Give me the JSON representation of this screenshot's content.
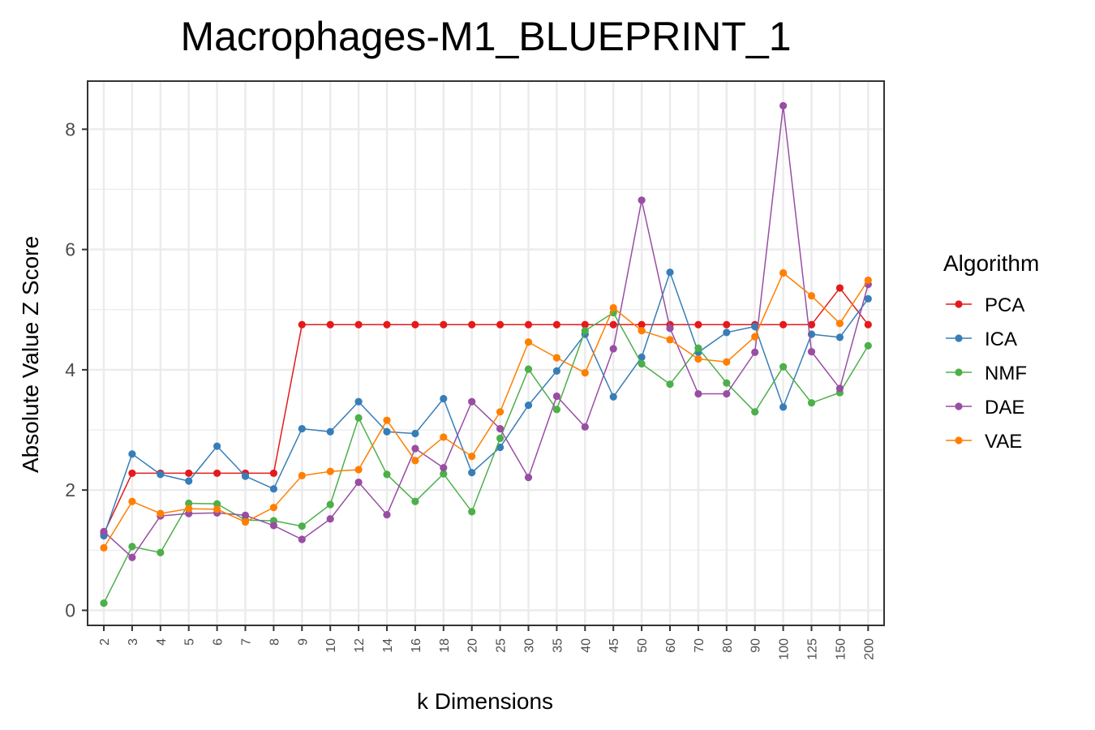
{
  "chart_data": {
    "type": "line",
    "title": "Macrophages-M1_BLUEPRINT_1",
    "xlabel": "k Dimensions",
    "ylabel": "Absolute Value Z Score",
    "categories": [
      "2",
      "3",
      "4",
      "5",
      "6",
      "7",
      "8",
      "9",
      "10",
      "12",
      "14",
      "16",
      "18",
      "20",
      "25",
      "30",
      "35",
      "40",
      "45",
      "50",
      "60",
      "70",
      "80",
      "90",
      "100",
      "125",
      "150",
      "200"
    ],
    "ylim": [
      -0.25,
      8.8
    ],
    "yticks": [
      "0",
      "2",
      "4",
      "6",
      "8"
    ],
    "grid": true,
    "legend_title": "Algorithm",
    "legend_position": "right",
    "series": [
      {
        "name": "PCA",
        "color": "#E41A1C",
        "values": [
          1.28,
          2.28,
          2.28,
          2.28,
          2.28,
          2.28,
          2.28,
          4.75,
          4.75,
          4.75,
          4.75,
          4.75,
          4.75,
          4.75,
          4.75,
          4.75,
          4.75,
          4.75,
          4.75,
          4.75,
          4.75,
          4.75,
          4.75,
          4.75,
          4.75,
          4.75,
          5.36,
          4.75
        ]
      },
      {
        "name": "ICA",
        "color": "#377EB8",
        "values": [
          1.24,
          2.6,
          2.26,
          2.15,
          2.73,
          2.23,
          2.02,
          3.02,
          2.97,
          3.47,
          2.97,
          2.94,
          3.52,
          2.29,
          2.71,
          3.41,
          3.98,
          4.59,
          3.55,
          4.21,
          5.62,
          4.29,
          4.62,
          4.72,
          3.38,
          4.59,
          4.54,
          5.18
        ]
      },
      {
        "name": "NMF",
        "color": "#4DAF4A",
        "values": [
          0.12,
          1.06,
          0.96,
          1.78,
          1.77,
          1.5,
          1.49,
          1.4,
          1.76,
          3.2,
          2.26,
          1.81,
          2.27,
          1.64,
          2.86,
          4.01,
          3.34,
          4.65,
          4.95,
          4.1,
          3.76,
          4.36,
          3.78,
          3.3,
          4.05,
          3.45,
          3.62,
          4.4
        ]
      },
      {
        "name": "DAE",
        "color": "#984EA3",
        "values": [
          1.31,
          0.88,
          1.57,
          1.61,
          1.62,
          1.58,
          1.41,
          1.18,
          1.52,
          2.13,
          1.59,
          2.69,
          2.37,
          3.47,
          3.02,
          2.21,
          3.56,
          3.05,
          4.35,
          6.82,
          4.69,
          3.6,
          3.6,
          4.29,
          8.39,
          4.3,
          3.69,
          5.42
        ]
      },
      {
        "name": "VAE",
        "color": "#FF7F00",
        "values": [
          1.04,
          1.81,
          1.61,
          1.69,
          1.68,
          1.47,
          1.71,
          2.24,
          2.31,
          2.34,
          3.16,
          2.49,
          2.88,
          2.56,
          3.3,
          4.46,
          4.2,
          3.95,
          5.03,
          4.65,
          4.5,
          4.18,
          4.13,
          4.55,
          5.61,
          5.23,
          4.77,
          5.49
        ]
      }
    ]
  }
}
